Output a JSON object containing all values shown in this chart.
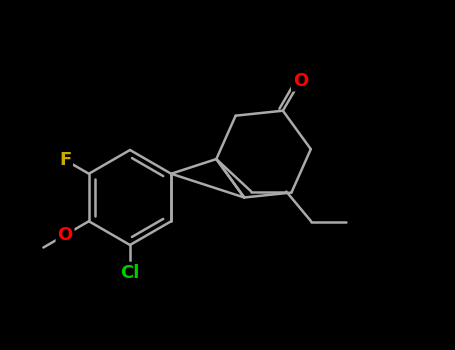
{
  "bg_color": "#000000",
  "bond_color": "#aaaaaa",
  "bond_width": 1.8,
  "atom_colors": {
    "O": "#ff0000",
    "F": "#ccaa00",
    "Cl": "#00cc00",
    "C": "#aaaaaa"
  },
  "font_sizes": {
    "O": 13,
    "F": 13,
    "Cl": 13
  },
  "figsize": [
    4.55,
    3.5
  ],
  "dpi": 100,
  "xlim": [
    0,
    9
  ],
  "ylim": [
    0,
    7
  ]
}
